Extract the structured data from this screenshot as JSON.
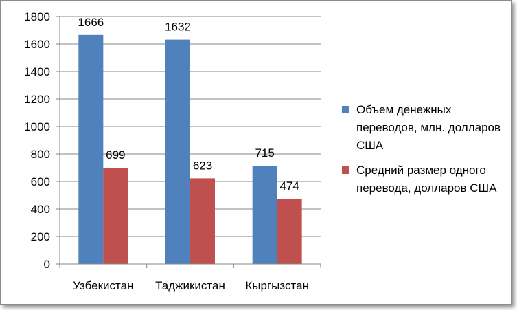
{
  "chart_data": {
    "type": "bar",
    "categories": [
      "Узбекистан",
      "Таджикистан",
      "Кыргызстан"
    ],
    "series": [
      {
        "name": "Объем денежных переводов, млн. долларов США",
        "values": [
          1666,
          1632,
          715
        ],
        "color": "#4f81bd"
      },
      {
        "name": "Средний размер одного перевода, долларов США",
        "values": [
          699,
          623,
          474
        ],
        "color": "#c0504d"
      }
    ],
    "ylim": [
      0,
      1800
    ],
    "yticks": [
      0,
      200,
      400,
      600,
      800,
      1000,
      1200,
      1400,
      1600,
      1800
    ],
    "grid": true,
    "legend_position": "right"
  }
}
